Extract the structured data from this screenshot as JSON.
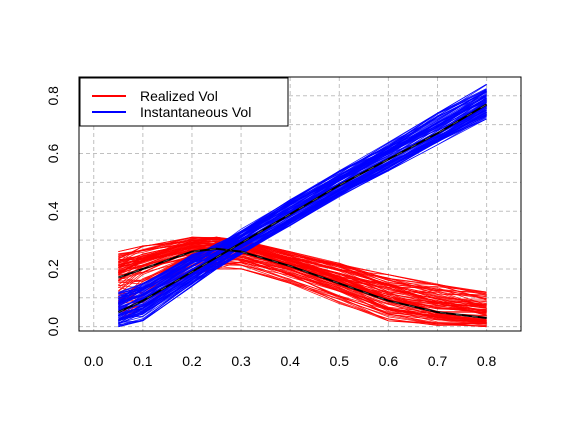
{
  "chart_data": {
    "type": "line",
    "title": "",
    "xlabel": "",
    "ylabel": "",
    "xlim": [
      0.0,
      0.8
    ],
    "ylim": [
      0.0,
      0.8
    ],
    "x_ticks": [
      "0.0",
      "0.1",
      "0.2",
      "0.3",
      "0.4",
      "0.5",
      "0.6",
      "0.7",
      "0.8"
    ],
    "y_ticks": [
      "0.0",
      "0.2",
      "0.4",
      "0.6",
      "0.8"
    ],
    "grid": true,
    "legend_position": "top-left",
    "x": [
      0.05,
      0.1,
      0.2,
      0.25,
      0.3,
      0.4,
      0.5,
      0.6,
      0.7,
      0.8
    ],
    "series": [
      {
        "name": "Realized Vol",
        "color": "#ff0000",
        "mean_values": [
          0.17,
          0.2,
          0.26,
          0.27,
          0.26,
          0.21,
          0.15,
          0.09,
          0.05,
          0.03
        ],
        "band_low": [
          0.02,
          0.06,
          0.18,
          0.2,
          0.2,
          0.15,
          0.08,
          0.02,
          0.0,
          0.0
        ],
        "band_high": [
          0.26,
          0.28,
          0.31,
          0.31,
          0.3,
          0.26,
          0.22,
          0.18,
          0.15,
          0.12
        ]
      },
      {
        "name": "Instantaneous Vol",
        "color": "#0000ff",
        "mean_values": [
          0.05,
          0.09,
          0.19,
          0.24,
          0.29,
          0.39,
          0.49,
          0.58,
          0.67,
          0.77
        ],
        "band_low": [
          0.0,
          0.02,
          0.14,
          0.2,
          0.25,
          0.35,
          0.45,
          0.54,
          0.63,
          0.72
        ],
        "band_high": [
          0.12,
          0.15,
          0.25,
          0.29,
          0.34,
          0.44,
          0.54,
          0.64,
          0.74,
          0.84
        ]
      }
    ],
    "mean_line_color": "#000000"
  }
}
